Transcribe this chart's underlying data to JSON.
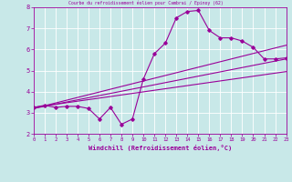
{
  "title": "Courbe du refroidissement éolien pour Cambrai / Epinoy (62)",
  "xlabel": "Windchill (Refroidissement éolien,°C)",
  "bg_color": "#c8e8e8",
  "line_color": "#990099",
  "grid_color": "#ffffff",
  "xlim": [
    0,
    23
  ],
  "ylim": [
    2,
    8
  ],
  "xticks": [
    0,
    1,
    2,
    3,
    4,
    5,
    6,
    7,
    8,
    9,
    10,
    11,
    12,
    13,
    14,
    15,
    16,
    17,
    18,
    19,
    20,
    21,
    22,
    23
  ],
  "yticks": [
    2,
    3,
    4,
    5,
    6,
    7,
    8
  ],
  "series1_x": [
    0,
    1,
    2,
    3,
    4,
    5,
    6,
    7,
    8,
    9,
    10,
    11,
    12,
    13,
    14,
    15,
    16,
    17,
    18,
    19,
    20,
    21,
    22,
    23
  ],
  "series1_y": [
    3.25,
    3.35,
    3.25,
    3.3,
    3.3,
    3.2,
    2.7,
    3.25,
    2.45,
    2.7,
    4.6,
    5.8,
    6.3,
    7.5,
    7.8,
    7.85,
    6.9,
    6.55,
    6.55,
    6.4,
    6.1,
    5.55,
    5.55,
    5.6
  ],
  "series2_x": [
    0,
    23
  ],
  "series2_y": [
    3.2,
    5.55
  ],
  "series3_x": [
    0,
    23
  ],
  "series3_y": [
    3.2,
    6.2
  ],
  "series4_x": [
    0,
    23
  ],
  "series4_y": [
    3.25,
    4.95
  ]
}
